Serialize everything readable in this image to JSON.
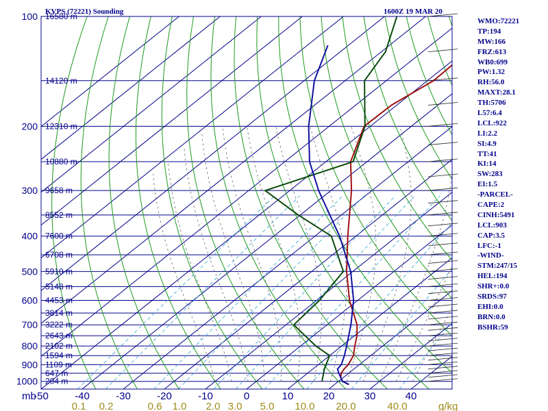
{
  "chart_data": {
    "type": "line",
    "title_left": "KVPS (72221) Sounding",
    "title_right": "1600Z 19 MAR 20",
    "p_axis_label": "mb",
    "mixing_ratio_unit": "g/kg",
    "p_ticks": [
      100,
      200,
      300,
      400,
      500,
      600,
      700,
      800,
      900,
      1000
    ],
    "t_ticks": [
      -50,
      -40,
      -30,
      -20,
      -10,
      0,
      10,
      20,
      30,
      40
    ],
    "t_range": [
      -50,
      50
    ],
    "p_range": [
      100,
      1050
    ],
    "skew_per_log": 48.3,
    "height_labels": [
      {
        "p": 100,
        "label": "16580 m"
      },
      {
        "p": 150,
        "label": "14120 m"
      },
      {
        "p": 200,
        "label": "12310 m"
      },
      {
        "p": 250,
        "label": "10880 m"
      },
      {
        "p": 300,
        "label": "9658 m"
      },
      {
        "p": 350,
        "label": "8552 m"
      },
      {
        "p": 400,
        "label": "7600 m"
      },
      {
        "p": 450,
        "label": "6708 m"
      },
      {
        "p": 500,
        "label": "5910 m"
      },
      {
        "p": 550,
        "label": "5148 m"
      },
      {
        "p": 600,
        "label": "4453 m"
      },
      {
        "p": 650,
        "label": "3814 m"
      },
      {
        "p": 700,
        "label": "3222 m"
      },
      {
        "p": 750,
        "label": "2643 m"
      },
      {
        "p": 800,
        "label": "2102 m"
      },
      {
        "p": 850,
        "label": "1594 m"
      },
      {
        "p": 900,
        "label": "1109 m"
      },
      {
        "p": 950,
        "label": "647 m"
      },
      {
        "p": 1000,
        "label": "204 m"
      }
    ],
    "mixing_ratio_labels": [
      "0.1",
      "0.2",
      "0.6",
      "1.0",
      "2.0",
      "3.0",
      "5.0",
      "10.0",
      "20.0",
      "40.0"
    ],
    "series": [
      {
        "color": "#a01010",
        "points": [
          {
            "p": 1020,
            "t": 23.5
          },
          {
            "p": 1000,
            "t": 21.0
          },
          {
            "p": 975,
            "t": 19.3
          },
          {
            "p": 950,
            "t": 18.2
          },
          {
            "p": 925,
            "t": 17.6
          },
          {
            "p": 900,
            "t": 17.3
          },
          {
            "p": 850,
            "t": 15.8
          },
          {
            "p": 800,
            "t": 13.2
          },
          {
            "p": 750,
            "t": 10.6
          },
          {
            "p": 700,
            "t": 7.3
          },
          {
            "p": 600,
            "t": -2.0
          },
          {
            "p": 500,
            "t": -11.5
          },
          {
            "p": 400,
            "t": -22.0
          },
          {
            "p": 300,
            "t": -35.0
          },
          {
            "p": 250,
            "t": -44.0
          },
          {
            "p": 200,
            "t": -51.5
          },
          {
            "p": 175,
            "t": -51.3
          },
          {
            "p": 150,
            "t": -48.5
          },
          {
            "p": 125,
            "t": -49.0
          },
          {
            "p": 100,
            "t": -56.0
          }
        ]
      },
      {
        "color": "#0a4a0a",
        "points": [
          {
            "p": 1000,
            "t": 16.0
          },
          {
            "p": 925,
            "t": 12.8
          },
          {
            "p": 850,
            "t": 10.0
          },
          {
            "p": 800,
            "t": 3.7
          },
          {
            "p": 750,
            "t": -2.0
          },
          {
            "p": 700,
            "t": -8.1
          },
          {
            "p": 600,
            "t": -9.3
          },
          {
            "p": 500,
            "t": -12.3
          },
          {
            "p": 400,
            "t": -26.0
          },
          {
            "p": 350,
            "t": -40.5
          },
          {
            "p": 300,
            "t": -56.0
          },
          {
            "p": 250,
            "t": -43.4
          },
          {
            "p": 200,
            "t": -51.3
          },
          {
            "p": 150,
            "t": -65.3
          },
          {
            "p": 125,
            "t": -69.0
          },
          {
            "p": 100,
            "t": -77.0
          }
        ]
      },
      {
        "color": "#1010a0",
        "points": [
          {
            "p": 1020,
            "t": 23.5
          },
          {
            "p": 1000,
            "t": 21.0
          },
          {
            "p": 950,
            "t": 17.6
          },
          {
            "p": 925,
            "t": 16.0
          },
          {
            "p": 900,
            "t": 15.6
          },
          {
            "p": 850,
            "t": 13.6
          },
          {
            "p": 800,
            "t": 11.2
          },
          {
            "p": 700,
            "t": 5.8
          },
          {
            "p": 600,
            "t": -1.0
          },
          {
            "p": 500,
            "t": -10.5
          },
          {
            "p": 400,
            "t": -24.0
          },
          {
            "p": 300,
            "t": -43.0
          },
          {
            "p": 250,
            "t": -54.0
          },
          {
            "p": 200,
            "t": -65.0
          },
          {
            "p": 150,
            "t": -77.5
          },
          {
            "p": 120,
            "t": -85.0
          }
        ]
      }
    ]
  },
  "sidebar": [
    "WMO:72221",
    "TP:194",
    "MW:166",
    "FRZ:613",
    "WB0:699",
    "PW:1.32",
    "RH:56.0",
    "MAXT:28.1",
    "TH:5706",
    "L57:6.4",
    "LCL:922",
    "LI:2.2",
    "SI:4.9",
    "TT:41",
    "KI:14",
    "SW:283",
    "EI:1.5",
    "-PARCEL-",
    "CAPE:2",
    "CINH:5491",
    "LCL:903",
    "CAP:3.5",
    "LFC:-1",
    "-WIND-",
    "STM:247/15",
    "HEL:194",
    "SHR+:0.0",
    "SRDS:97",
    "EHI:0.0",
    "BRN:0.0",
    "BSHR:59"
  ]
}
